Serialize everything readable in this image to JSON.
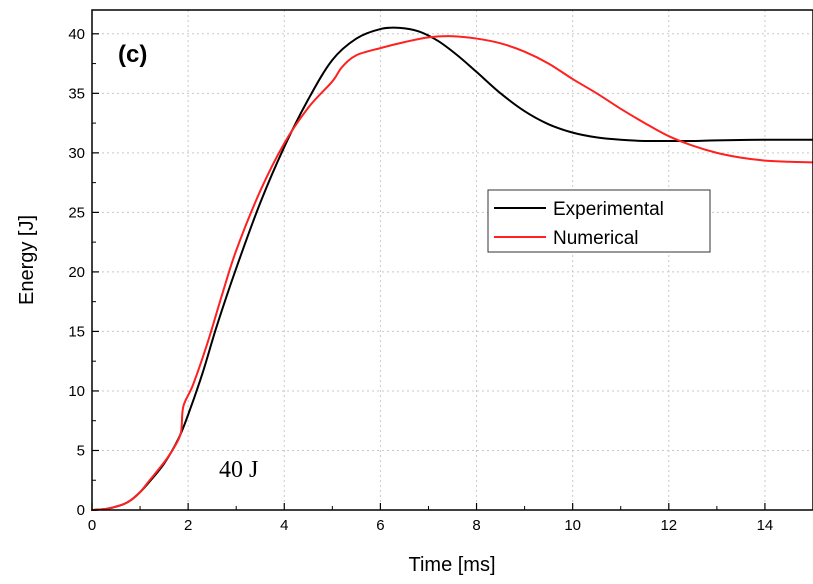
{
  "chart_data": {
    "type": "line",
    "panel_label": "(c)",
    "annotation": "40 J",
    "xlabel": "Time [ms]",
    "ylabel": "Energy [J]",
    "xlim": [
      0,
      15
    ],
    "ylim": [
      0,
      42
    ],
    "x_ticks": [
      0,
      2,
      4,
      6,
      8,
      10,
      12,
      14
    ],
    "y_ticks": [
      0,
      5,
      10,
      15,
      20,
      25,
      30,
      35,
      40
    ],
    "grid": true,
    "legend_position": "center-right",
    "series": [
      {
        "name": "Experimental",
        "color": "#000000",
        "x": [
          0,
          0.3,
          0.6,
          0.8,
          1.0,
          1.2,
          1.5,
          1.8,
          2.0,
          2.3,
          2.6,
          3.0,
          3.5,
          4.0,
          4.5,
          5.0,
          5.5,
          6.0,
          6.4,
          6.8,
          7.2,
          7.6,
          8.0,
          8.5,
          9.0,
          9.5,
          10.0,
          10.5,
          11.0,
          11.5,
          12.0,
          12.5,
          13.0,
          14.0,
          15.0
        ],
        "y": [
          0,
          0.1,
          0.4,
          0.8,
          1.5,
          2.4,
          3.9,
          6.0,
          8.0,
          11.5,
          15.5,
          20.3,
          25.8,
          30.5,
          34.5,
          37.8,
          39.6,
          40.4,
          40.5,
          40.2,
          39.4,
          38.2,
          36.8,
          35.0,
          33.5,
          32.4,
          31.7,
          31.3,
          31.1,
          31.0,
          31.0,
          31.0,
          31.05,
          31.1,
          31.1
        ]
      },
      {
        "name": "Numerical",
        "color": "#ff2020",
        "x": [
          0,
          0.3,
          0.6,
          0.8,
          1.0,
          1.2,
          1.5,
          1.7,
          1.85,
          1.9,
          2.1,
          2.4,
          2.7,
          3.0,
          3.5,
          4.0,
          4.5,
          5.0,
          5.2,
          5.5,
          6.0,
          6.5,
          7.0,
          7.5,
          8.0,
          8.5,
          9.0,
          9.5,
          10.0,
          10.5,
          11.0,
          11.5,
          12.0,
          12.5,
          13.0,
          13.5,
          14.0,
          14.5,
          15.0
        ],
        "y": [
          0,
          0.1,
          0.4,
          0.8,
          1.5,
          2.5,
          4.0,
          5.2,
          6.5,
          8.7,
          10.5,
          14.0,
          18.0,
          21.8,
          26.8,
          30.8,
          33.8,
          36.0,
          37.2,
          38.2,
          38.8,
          39.3,
          39.7,
          39.8,
          39.6,
          39.2,
          38.5,
          37.5,
          36.2,
          35.0,
          33.7,
          32.5,
          31.4,
          30.6,
          30.0,
          29.6,
          29.35,
          29.25,
          29.2
        ]
      }
    ]
  }
}
